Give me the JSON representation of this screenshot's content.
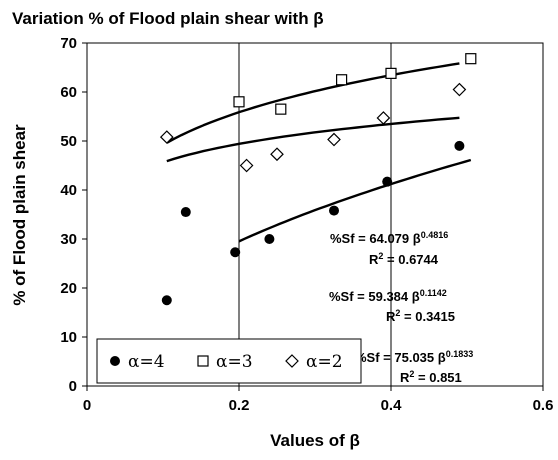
{
  "chart_data": {
    "type": "scatter",
    "title": "Variation % of Flood plain  shear with β",
    "xlabel": "Values of β",
    "ylabel": "% of Flood plain shear",
    "xlim": [
      0,
      0.6
    ],
    "ylim": [
      0,
      70
    ],
    "xticks": [
      "0",
      "0.2",
      "0.4",
      "0.6"
    ],
    "yticks": [
      "0",
      "10",
      "20",
      "30",
      "40",
      "50",
      "60",
      "70"
    ],
    "grid": "vertical",
    "legend_position": "bottom-left",
    "series": [
      {
        "name": "α=4",
        "marker": "filled-circle",
        "x": [
          0.105,
          0.13,
          0.195,
          0.24,
          0.325,
          0.395,
          0.49
        ],
        "y": [
          17.5,
          35.5,
          27.3,
          30,
          35.8,
          41.7,
          49
        ]
      },
      {
        "name": "α=3",
        "marker": "open-square",
        "x": [
          0.2,
          0.255,
          0.335,
          0.4,
          0.505
        ],
        "y": [
          58,
          56.5,
          62.5,
          63.8,
          66.8
        ]
      },
      {
        "name": "α=2",
        "marker": "open-diamond",
        "x": [
          0.105,
          0.21,
          0.25,
          0.325,
          0.39,
          0.49
        ],
        "y": [
          50.8,
          45,
          47.3,
          50.3,
          54.7,
          60.5
        ]
      }
    ],
    "trendlines": [
      {
        "series": "α=4",
        "type": "power",
        "a": 75.035,
        "b": 0.1833,
        "x_range": [
          0.105,
          0.49
        ]
      },
      {
        "series": "α=3",
        "type": "power",
        "a": 64.079,
        "b": 0.4816,
        "x_range": [
          0.2,
          0.505
        ]
      },
      {
        "series": "α=2",
        "type": "power",
        "a": 59.384,
        "b": 0.1142,
        "x_range": [
          0.105,
          0.49
        ]
      }
    ],
    "annotations": [
      {
        "equation": "%Sf = 64.079",
        "base": "β",
        "exponent": "0.4816",
        "r2_label": "R",
        "r2_sup": "2",
        "r2_value": "= 0.6744"
      },
      {
        "equation": "%Sf = 59.384",
        "base": "β",
        "exponent": "0.1142",
        "r2_label": "R",
        "r2_sup": "2",
        "r2_value": "= 0.3415"
      },
      {
        "equation": "%Sf = 75.035",
        "base": "β",
        "exponent": "0.1833",
        "r2_label": "R",
        "r2_sup": "2",
        "r2_value": "= 0.851"
      }
    ]
  }
}
